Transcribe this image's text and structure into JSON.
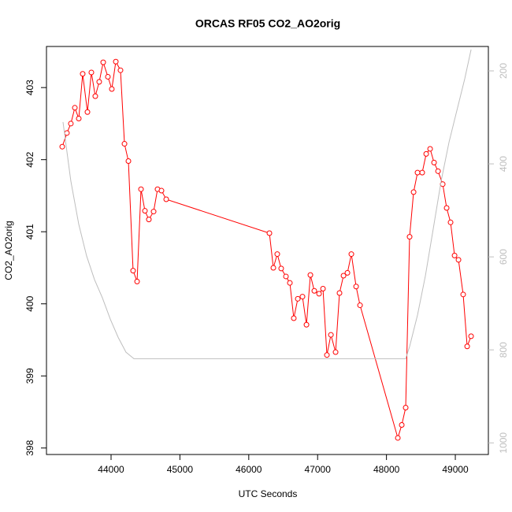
{
  "chart_data": {
    "type": "line",
    "title": "ORCAS RF05 CO2_AO2orig",
    "x_label": "UTC Seconds",
    "y_label": "CO2_AO2orig",
    "xlim": [
      43062,
      49480
    ],
    "xticks": [
      44000,
      45000,
      46000,
      47000,
      48000,
      49000
    ],
    "ylim": [
      397.91,
      403.57
    ],
    "yticks": [
      398,
      399,
      400,
      401,
      402,
      403
    ],
    "y2lim": [
      1025,
      147.5
    ],
    "y2ticks": [
      200,
      400,
      600,
      800,
      1000
    ],
    "y2_color": "#bebebe",
    "series": [
      {
        "color": "#ff0000",
        "marker": "circle",
        "x": [
          43291,
          43359,
          43416,
          43474,
          43531,
          43588,
          43657,
          43714,
          43771,
          43828,
          43886,
          43954,
          44011,
          44069,
          44137,
          44195,
          44252,
          44320,
          44378,
          44435,
          44492,
          44549,
          44618,
          44675,
          44732,
          44801,
          46300,
          46357,
          46414,
          46471,
          46540,
          46597,
          46654,
          46712,
          46780,
          46838,
          46895,
          46952,
          47021,
          47078,
          47135,
          47193,
          47261,
          47318,
          47376,
          47433,
          47490,
          47559,
          47616,
          48165,
          48222,
          48279,
          48336,
          48394,
          48451,
          48519,
          48577,
          48634,
          48691,
          48749,
          48817,
          48874,
          48931,
          48989,
          49046,
          49114,
          49172,
          49229
        ],
        "values": [
          402.18,
          402.37,
          402.5,
          402.72,
          402.57,
          403.19,
          402.66,
          403.21,
          402.88,
          403.08,
          403.35,
          403.15,
          402.98,
          403.36,
          403.24,
          402.22,
          401.98,
          400.46,
          400.31,
          401.59,
          401.29,
          401.17,
          401.28,
          401.59,
          401.57,
          401.45,
          400.98,
          400.5,
          400.69,
          400.49,
          400.38,
          400.29,
          399.8,
          400.07,
          400.1,
          399.71,
          400.4,
          400.18,
          400.14,
          400.21,
          399.29,
          399.57,
          399.33,
          400.15,
          400.39,
          400.43,
          400.69,
          400.24,
          399.98,
          398.14,
          398.32,
          398.56,
          400.93,
          401.55,
          401.82,
          401.82,
          402.08,
          402.15,
          401.96,
          401.84,
          401.66,
          401.33,
          401.13,
          400.67,
          400.61,
          400.13,
          399.41,
          399.55
        ]
      },
      {
        "color": "#bebebe",
        "axis": "y2",
        "x": [
          43302,
          43416,
          43531,
          43645,
          43760,
          43874,
          43989,
          44103,
          44217,
          44332,
          48279,
          48336,
          48451,
          48565,
          48680,
          48794,
          48909,
          49023,
          49137,
          49229
        ],
        "values": [
          310,
          437,
          530,
          598,
          649,
          688,
          734,
          773,
          805,
          819,
          819,
          793,
          725,
          641,
          539,
          437,
          353,
          285,
          217,
          154
        ]
      }
    ]
  }
}
